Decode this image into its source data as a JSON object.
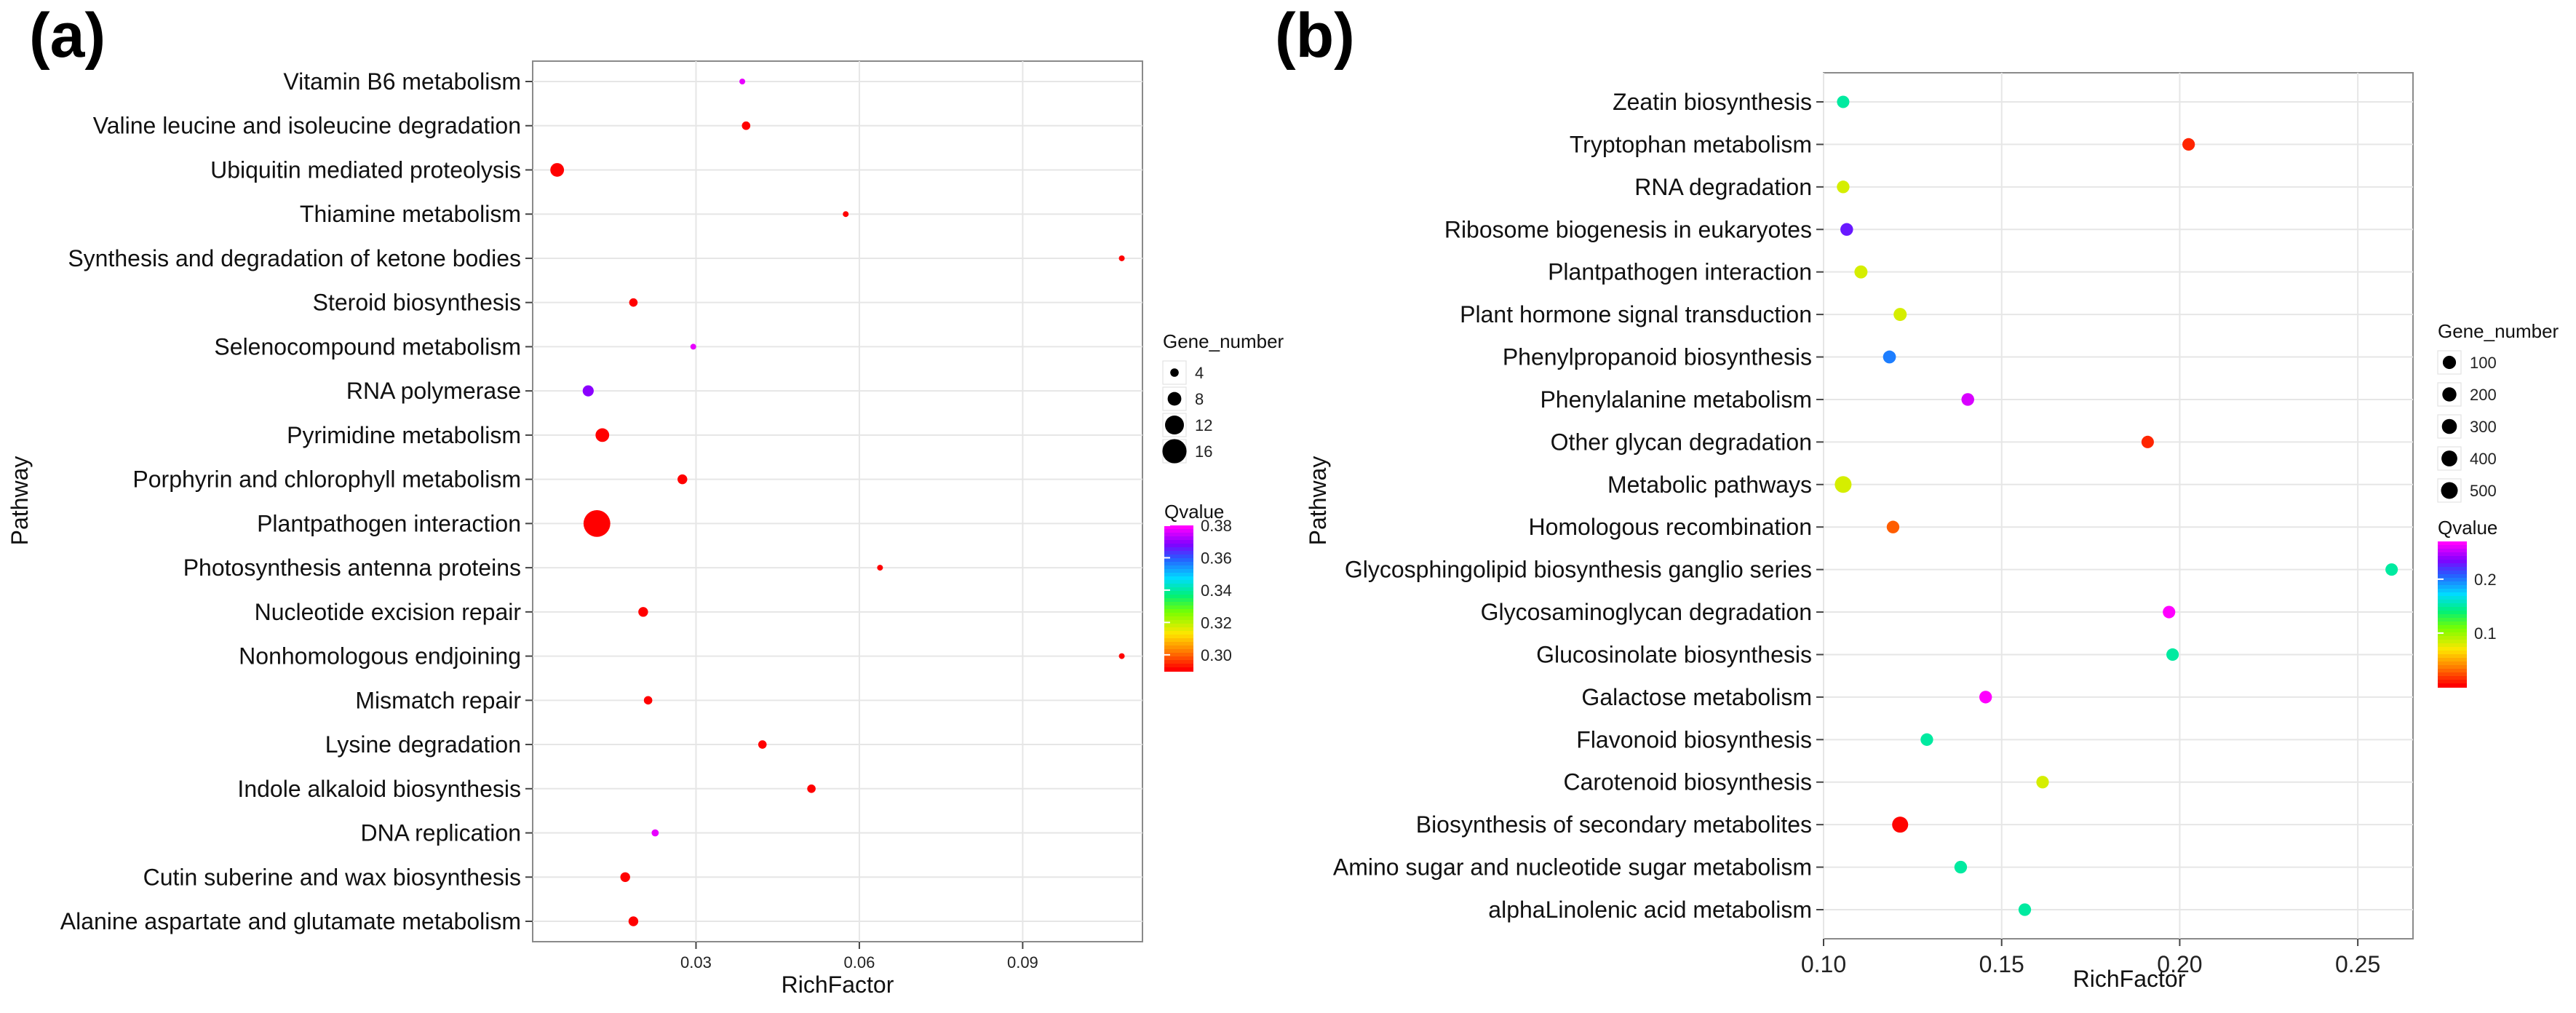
{
  "chart_data": [
    {
      "panel": "(a)",
      "type": "scatter",
      "xlabel": "RichFactor",
      "ylabel": "Pathway",
      "xlim": [
        0.0,
        0.112
      ],
      "xticks": [
        0.03,
        0.06,
        0.09
      ],
      "xtick_labels": [
        "0.03",
        "0.06",
        "0.09"
      ],
      "categories": [
        "Alanine aspartate and glutamate metabolism",
        "Cutin suberine and wax biosynthesis",
        "DNA replication",
        "Indole alkaloid biosynthesis",
        "Lysine degradation",
        "Mismatch repair",
        "Nonhomologous endjoining",
        "Nucleotide excision repair",
        "Photosynthesis  antenna proteins",
        "Plantpathogen interaction",
        "Porphyrin and chlorophyll metabolism",
        "Pyrimidine metabolism",
        "RNA polymerase",
        "Selenocompound metabolism",
        "Steroid biosynthesis",
        "Synthesis and degradation of ketone bodies",
        "Thiamine metabolism",
        "Ubiquitin mediated proteolysis",
        "Valine leucine and isoleucine degradation",
        "Vitamin B6 metabolism"
      ],
      "points": [
        {
          "y": "Alanine aspartate and glutamate metabolism",
          "x": 0.0185,
          "gene_number": 5,
          "qvalue": 0.29
        },
        {
          "y": "Cutin suberine and wax biosynthesis",
          "x": 0.017,
          "gene_number": 5,
          "qvalue": 0.29
        },
        {
          "y": "DNA replication",
          "x": 0.0225,
          "gene_number": 3,
          "qvalue": 0.378
        },
        {
          "y": "Indole alkaloid biosynthesis",
          "x": 0.0512,
          "gene_number": 4,
          "qvalue": 0.29
        },
        {
          "y": "Lysine degradation",
          "x": 0.0422,
          "gene_number": 4,
          "qvalue": 0.29
        },
        {
          "y": "Mismatch repair",
          "x": 0.0212,
          "gene_number": 4,
          "qvalue": 0.29
        },
        {
          "y": "Nonhomologous endjoining",
          "x": 0.1082,
          "gene_number": 2,
          "qvalue": 0.29
        },
        {
          "y": "Nucleotide excision repair",
          "x": 0.0203,
          "gene_number": 5,
          "qvalue": 0.29
        },
        {
          "y": "Photosynthesis  antenna proteins",
          "x": 0.0638,
          "gene_number": 2,
          "qvalue": 0.29
        },
        {
          "y": "Plantpathogen interaction",
          "x": 0.0118,
          "gene_number": 18,
          "qvalue": 0.29
        },
        {
          "y": "Porphyrin and chlorophyll metabolism",
          "x": 0.0275,
          "gene_number": 5,
          "qvalue": 0.29
        },
        {
          "y": "Pyrimidine metabolism",
          "x": 0.0128,
          "gene_number": 8,
          "qvalue": 0.29
        },
        {
          "y": "RNA polymerase",
          "x": 0.0102,
          "gene_number": 6,
          "qvalue": 0.37
        },
        {
          "y": "Selenocompound metabolism",
          "x": 0.0295,
          "gene_number": 2,
          "qvalue": 0.378
        },
        {
          "y": "Steroid biosynthesis",
          "x": 0.0185,
          "gene_number": 4,
          "qvalue": 0.29
        },
        {
          "y": "Synthesis and degradation of ketone bodies",
          "x": 0.1082,
          "gene_number": 2,
          "qvalue": 0.29
        },
        {
          "y": "Thiamine metabolism",
          "x": 0.0575,
          "gene_number": 2,
          "qvalue": 0.29
        },
        {
          "y": "Ubiquitin mediated proteolysis",
          "x": 0.0045,
          "gene_number": 8,
          "qvalue": 0.29
        },
        {
          "y": "Valine leucine and isoleucine degradation",
          "x": 0.0392,
          "gene_number": 4,
          "qvalue": 0.29
        },
        {
          "y": "Vitamin B6 metabolism",
          "x": 0.0385,
          "gene_number": 2,
          "qvalue": 0.378
        }
      ],
      "size_legend": {
        "title": "Gene_number",
        "values": [
          4,
          8,
          12,
          16
        ],
        "labels": [
          "4",
          "8",
          "12",
          "16"
        ]
      },
      "color_legend": {
        "title": "Qvalue",
        "min": 0.29,
        "max": 0.38,
        "ticks": [
          0.3,
          0.32,
          0.34,
          0.36,
          0.38
        ],
        "tick_labels": [
          "0.30",
          "0.32",
          "0.34",
          "0.36",
          "0.38"
        ]
      }
    },
    {
      "panel": "(b)",
      "type": "scatter",
      "xlabel": "RichFactor",
      "ylabel": "Pathway",
      "xlim": [
        0.1,
        0.2655
      ],
      "xticks": [
        0.1,
        0.15,
        0.2,
        0.25
      ],
      "xtick_labels": [
        "0.10",
        "0.15",
        "0.20",
        "0.25"
      ],
      "categories": [
        "alphaLinolenic acid metabolism",
        "Amino sugar and nucleotide sugar metabolism",
        "Biosynthesis of secondary metabolites",
        "Carotenoid biosynthesis",
        "Flavonoid biosynthesis",
        "Galactose metabolism",
        "Glucosinolate biosynthesis",
        "Glycosaminoglycan degradation",
        "Glycosphingolipid biosynthesis  ganglio series",
        "Homologous recombination",
        "Metabolic pathways",
        "Other glycan degradation",
        "Phenylalanine metabolism",
        "Phenylpropanoid biosynthesis",
        "Plant hormone signal transduction",
        "Plantpathogen interaction",
        "Ribosome biogenesis in eukaryotes",
        "RNA degradation",
        "Tryptophan metabolism",
        "Zeatin biosynthesis"
      ],
      "points": [
        {
          "y": "alphaLinolenic acid metabolism",
          "x": 0.1565,
          "gene_number": 25,
          "qvalue": 0.15
        },
        {
          "y": "Amino sugar and nucleotide sugar metabolism",
          "x": 0.1385,
          "gene_number": 30,
          "qvalue": 0.15
        },
        {
          "y": "Biosynthesis of secondary metabolites",
          "x": 0.1215,
          "gene_number": 420,
          "qvalue": 0.001
        },
        {
          "y": "Carotenoid biosynthesis",
          "x": 0.1615,
          "gene_number": 20,
          "qvalue": 0.08
        },
        {
          "y": "Flavonoid biosynthesis",
          "x": 0.129,
          "gene_number": 25,
          "qvalue": 0.15
        },
        {
          "y": "Galactose metabolism",
          "x": 0.1455,
          "gene_number": 30,
          "qvalue": 0.28
        },
        {
          "y": "Glucosinolate biosynthesis",
          "x": 0.198,
          "gene_number": 10,
          "qvalue": 0.15
        },
        {
          "y": "Glycosaminoglycan degradation",
          "x": 0.197,
          "gene_number": 10,
          "qvalue": 0.28
        },
        {
          "y": "Glycosphingolipid biosynthesis  ganglio series",
          "x": 0.2595,
          "gene_number": 5,
          "qvalue": 0.15
        },
        {
          "y": "Homologous recombination",
          "x": 0.1195,
          "gene_number": 30,
          "qvalue": 0.025
        },
        {
          "y": "Metabolic pathways",
          "x": 0.1055,
          "gene_number": 500,
          "qvalue": 0.08
        },
        {
          "y": "Other glycan degradation",
          "x": 0.191,
          "gene_number": 10,
          "qvalue": 0.01
        },
        {
          "y": "Phenylalanine metabolism",
          "x": 0.1405,
          "gene_number": 40,
          "qvalue": 0.26
        },
        {
          "y": "Phenylpropanoid biosynthesis",
          "x": 0.1185,
          "gene_number": 60,
          "qvalue": 0.2
        },
        {
          "y": "Plant hormone signal transduction",
          "x": 0.1215,
          "gene_number": 80,
          "qvalue": 0.08
        },
        {
          "y": "Plantpathogen interaction",
          "x": 0.1105,
          "gene_number": 80,
          "qvalue": 0.08
        },
        {
          "y": "Ribosome biogenesis in eukaryotes",
          "x": 0.1065,
          "gene_number": 40,
          "qvalue": 0.23
        },
        {
          "y": "RNA degradation",
          "x": 0.1055,
          "gene_number": 30,
          "qvalue": 0.08
        },
        {
          "y": "Tryptophan metabolism",
          "x": 0.2025,
          "gene_number": 20,
          "qvalue": 0.01
        },
        {
          "y": "Zeatin biosynthesis",
          "x": 0.1055,
          "gene_number": 5,
          "qvalue": 0.15
        }
      ],
      "size_legend": {
        "title": "Gene_number",
        "values": [
          100,
          200,
          300,
          400,
          500
        ],
        "labels": [
          "100",
          "200",
          "300",
          "400",
          "500"
        ]
      },
      "color_legend": {
        "title": "Qvalue",
        "min": 0.0,
        "max": 0.27,
        "ticks": [
          0.1,
          0.2
        ],
        "tick_labels": [
          "0.1",
          "0.2"
        ]
      }
    }
  ]
}
